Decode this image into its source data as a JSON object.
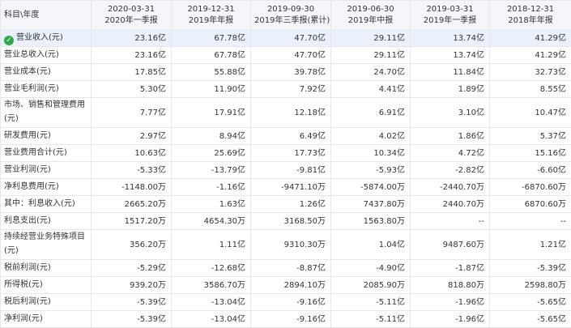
{
  "table": {
    "corner_label": "科目\\年度",
    "columns": [
      {
        "date": "2020-03-31",
        "period": "2020年一季报"
      },
      {
        "date": "2019-12-31",
        "period": "2019年年报"
      },
      {
        "date": "2019-09-30",
        "period": "2019年三季报(累计)"
      },
      {
        "date": "2019-06-30",
        "period": "2019年中报"
      },
      {
        "date": "2019-03-31",
        "period": "2019年一季报"
      },
      {
        "date": "2018-12-31",
        "period": "2018年年报"
      }
    ],
    "rows": [
      {
        "label": "营业收入(元)",
        "values": [
          "23.16亿",
          "67.78亿",
          "47.70亿",
          "29.11亿",
          "13.74亿",
          "41.29亿"
        ],
        "selected": true
      },
      {
        "label": "营业总收入(元)",
        "values": [
          "23.16亿",
          "67.78亿",
          "47.70亿",
          "29.11亿",
          "13.74亿",
          "41.29亿"
        ]
      },
      {
        "label": "营业成本(元)",
        "values": [
          "17.85亿",
          "55.88亿",
          "39.78亿",
          "24.70亿",
          "11.84亿",
          "32.73亿"
        ]
      },
      {
        "label": "营业毛利润(元)",
        "values": [
          "5.30亿",
          "11.90亿",
          "7.92亿",
          "4.41亿",
          "1.89亿",
          "8.55亿"
        ]
      },
      {
        "label": "市场、销售和管理费用(元)",
        "values": [
          "7.77亿",
          "17.91亿",
          "12.18亿",
          "6.91亿",
          "3.10亿",
          "10.47亿"
        ],
        "tall": true
      },
      {
        "label": "研发费用(元)",
        "values": [
          "2.97亿",
          "8.94亿",
          "6.49亿",
          "4.02亿",
          "1.86亿",
          "5.37亿"
        ]
      },
      {
        "label": "营业费用合计(元)",
        "values": [
          "10.63亿",
          "25.69亿",
          "17.73亿",
          "10.34亿",
          "4.72亿",
          "15.16亿"
        ]
      },
      {
        "label": "营业利润(元)",
        "values": [
          "-5.33亿",
          "-13.79亿",
          "-9.81亿",
          "-5.93亿",
          "-2.82亿",
          "-6.60亿"
        ]
      },
      {
        "label": "净利息费用(元)",
        "values": [
          "-1148.00万",
          "-1.16亿",
          "-9471.10万",
          "-5874.00万",
          "-2440.70万",
          "-6870.60万"
        ]
      },
      {
        "label": "其中：利息收入(元)",
        "values": [
          "2665.20万",
          "1.63亿",
          "1.26亿",
          "7437.80万",
          "2440.70万",
          "6870.60万"
        ]
      },
      {
        "label": "利息支出(元)",
        "values": [
          "1517.20万",
          "4654.30万",
          "3168.50万",
          "1563.80万",
          "--",
          "--"
        ]
      },
      {
        "label": "持续经营业务特殊项目(元)",
        "values": [
          "356.20万",
          "1.11亿",
          "9310.30万",
          "1.04亿",
          "9487.60万",
          "1.21亿"
        ],
        "tall": true
      },
      {
        "label": "税前利润(元)",
        "values": [
          "-5.29亿",
          "-12.68亿",
          "-8.87亿",
          "-4.90亿",
          "-1.87亿",
          "-5.39亿"
        ]
      },
      {
        "label": "所得税(元)",
        "values": [
          "939.20万",
          "3586.70万",
          "2894.10万",
          "2085.90万",
          "818.80万",
          "2598.80万"
        ]
      },
      {
        "label": "税后利润(元)",
        "values": [
          "-5.39亿",
          "-13.04亿",
          "-9.16亿",
          "-5.11亿",
          "-1.96亿",
          "-5.65亿"
        ]
      },
      {
        "label": "净利润(元)",
        "values": [
          "-5.39亿",
          "-13.04亿",
          "-9.16亿",
          "-5.11亿",
          "-1.96亿",
          "-5.65亿"
        ]
      }
    ]
  },
  "colors": {
    "header_bg": "#f4f6fa",
    "selected_row_bg": "#eaf1fb",
    "border": "#e3e7ee",
    "check_green": "#2faa4a"
  },
  "icons": {
    "selected_row": "check-circle-icon"
  }
}
